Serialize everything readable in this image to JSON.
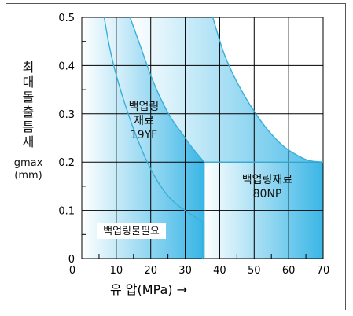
{
  "chart_data": {
    "type": "line",
    "xlabel": "유  압(MPa) →",
    "ylabel_chars": [
      "최",
      "대",
      "돌",
      "출",
      "틈",
      "새"
    ],
    "ylabel_symbol": "gmax",
    "ylabel_unit": "(mm)",
    "xlim": [
      0,
      70
    ],
    "ylim": [
      0,
      0.5
    ],
    "xticks": [
      "0",
      "10",
      "20",
      "30",
      "40",
      "50",
      "60",
      "70"
    ],
    "yticks": [
      "0",
      "0.1",
      "0.2",
      "0.3",
      "0.4",
      "0.5"
    ],
    "grid": true,
    "series": [
      {
        "name": "",
        "points": [
          [
            6.5,
            0.5
          ],
          [
            8,
            0.44
          ],
          [
            10,
            0.38
          ],
          [
            13,
            0.31
          ],
          [
            16,
            0.25
          ],
          [
            19,
            0.2
          ],
          [
            22,
            0.16
          ],
          [
            25,
            0.13
          ],
          [
            28,
            0.11
          ],
          [
            31,
            0.095
          ],
          [
            35,
            0.077
          ]
        ]
      },
      {
        "name": "",
        "points": [
          [
            14,
            0.5
          ],
          [
            17,
            0.44
          ],
          [
            20,
            0.38
          ],
          [
            23,
            0.33
          ],
          [
            26,
            0.29
          ],
          [
            29,
            0.26
          ],
          [
            32,
            0.23
          ],
          [
            35.5,
            0.2
          ]
        ]
      },
      {
        "name": "",
        "points": [
          [
            38,
            0.5
          ],
          [
            41,
            0.43
          ],
          [
            44,
            0.38
          ],
          [
            47,
            0.34
          ],
          [
            50,
            0.305
          ],
          [
            53,
            0.275
          ],
          [
            56,
            0.25
          ],
          [
            59,
            0.23
          ],
          [
            63,
            0.212
          ],
          [
            66,
            0.203
          ],
          [
            70,
            0.2
          ]
        ]
      }
    ],
    "regions": [
      {
        "label_lines": [
          "백업링불필요"
        ]
      },
      {
        "label_lines": [
          "백업링",
          "재료",
          "19YF"
        ]
      },
      {
        "label_lines": [
          "백업링재료",
          "80NP"
        ]
      }
    ]
  },
  "colors": {
    "curve": "#3aaed8",
    "fill_dark": "#3ab6e6",
    "fill_light": "#e9f6fc",
    "grid": "#000000"
  }
}
